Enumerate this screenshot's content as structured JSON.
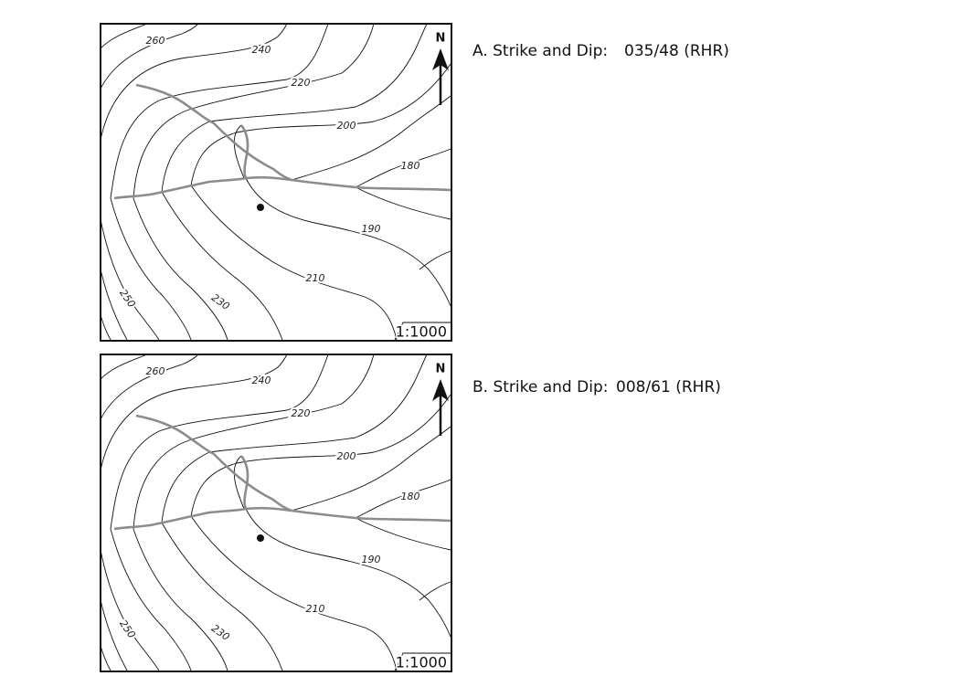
{
  "problems": [
    {
      "label": "A. Strike and Dip:",
      "answer": "035/48 (RHR)",
      "map": {
        "north": "N",
        "scale": "1:1000",
        "contours": [
          260,
          240,
          220,
          200,
          180,
          190,
          210,
          230,
          250
        ]
      }
    },
    {
      "label": "B. Strike and Dip:",
      "answer": "008/61 (RHR)",
      "map": {
        "north": "N",
        "scale": "1:1000",
        "contours": [
          260,
          240,
          220,
          200,
          180,
          190,
          210,
          230,
          250
        ]
      }
    }
  ]
}
